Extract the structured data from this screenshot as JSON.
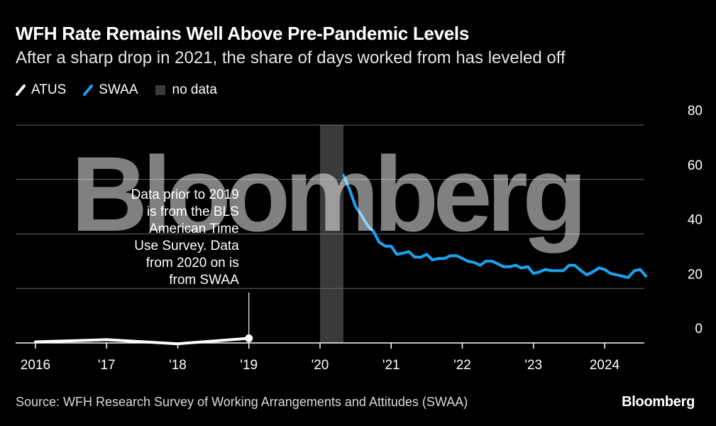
{
  "title": "WFH Rate Remains Well Above Pre-Pandemic Levels",
  "subtitle": "After a sharp drop in 2021, the share of days worked from has leveled off",
  "legend": {
    "atus": "ATUS",
    "swaa": "SWAA",
    "nodata": "no data"
  },
  "annotation_lines": [
    "Data prior to 2019",
    "is from the BLS",
    "American Time",
    "Use Survey. Data",
    "from 2020 on is",
    "from SWAA"
  ],
  "watermark": "Bloomberg",
  "source": "Source: WFH Research Survey of Working Arrangements and Attitudes (SWAA)",
  "brand": "Bloomberg",
  "colors": {
    "atus": "#ffffff",
    "swaa": "#1aa3f0",
    "nodata": "#3a3a3a",
    "grid": "#666666"
  },
  "chart_data": {
    "type": "line",
    "title": "WFH Rate Remains Well Above Pre-Pandemic Levels",
    "subtitle": "After a sharp drop in 2021, the share of days worked from has leveled off",
    "ylim": [
      0,
      80
    ],
    "yticks": [
      0,
      20,
      40,
      60,
      80
    ],
    "xlim": [
      2016,
      2024.9
    ],
    "xticks": [
      {
        "x": 2016,
        "label": "2016"
      },
      {
        "x": 2017,
        "label": "'17"
      },
      {
        "x": 2018,
        "label": "'18"
      },
      {
        "x": 2019,
        "label": "'19"
      },
      {
        "x": 2020,
        "label": "'20"
      },
      {
        "x": 2021,
        "label": "'21"
      },
      {
        "x": 2022,
        "label": "'22"
      },
      {
        "x": 2023,
        "label": "'23"
      },
      {
        "x": 2024,
        "label": "2024"
      }
    ],
    "grid": true,
    "y_axis_position": "right",
    "legend_position": "top-left",
    "no_data_range": [
      2020.0,
      2020.33
    ],
    "series": [
      {
        "name": "ATUS",
        "x": [
          2016,
          2017,
          2018,
          2019
        ],
        "values": [
          0.4,
          1.2,
          -0.3,
          1.7
        ]
      },
      {
        "name": "SWAA",
        "x": [
          2020.33,
          2020.42,
          2020.5,
          2020.58,
          2020.67,
          2020.75,
          2020.83,
          2020.92,
          2021.0,
          2021.08,
          2021.17,
          2021.25,
          2021.33,
          2021.42,
          2021.5,
          2021.58,
          2021.67,
          2021.75,
          2021.83,
          2021.92,
          2022.0,
          2022.08,
          2022.17,
          2022.25,
          2022.33,
          2022.42,
          2022.5,
          2022.58,
          2022.67,
          2022.75,
          2022.83,
          2022.92,
          2023.0,
          2023.08,
          2023.17,
          2023.25,
          2023.33,
          2023.42,
          2023.5,
          2023.58,
          2023.67,
          2023.75,
          2023.83,
          2023.92,
          2024.0,
          2024.08,
          2024.17,
          2024.25,
          2024.33,
          2024.42,
          2024.5,
          2024.58
        ],
        "values": [
          61.5,
          56,
          50,
          47,
          43,
          41,
          37,
          35.5,
          35.5,
          32.5,
          33,
          33.5,
          31.5,
          31.5,
          32.5,
          30.5,
          31,
          31,
          32,
          32,
          31,
          30,
          29.5,
          28.5,
          30,
          30,
          29,
          28,
          28,
          28.5,
          27.5,
          28,
          25.5,
          26,
          27,
          26.5,
          26.5,
          26.5,
          28.5,
          28.5,
          26.5,
          25,
          26,
          27.5,
          27,
          25.5,
          25,
          24.5,
          24,
          26.5,
          27,
          24.5
        ]
      }
    ]
  }
}
